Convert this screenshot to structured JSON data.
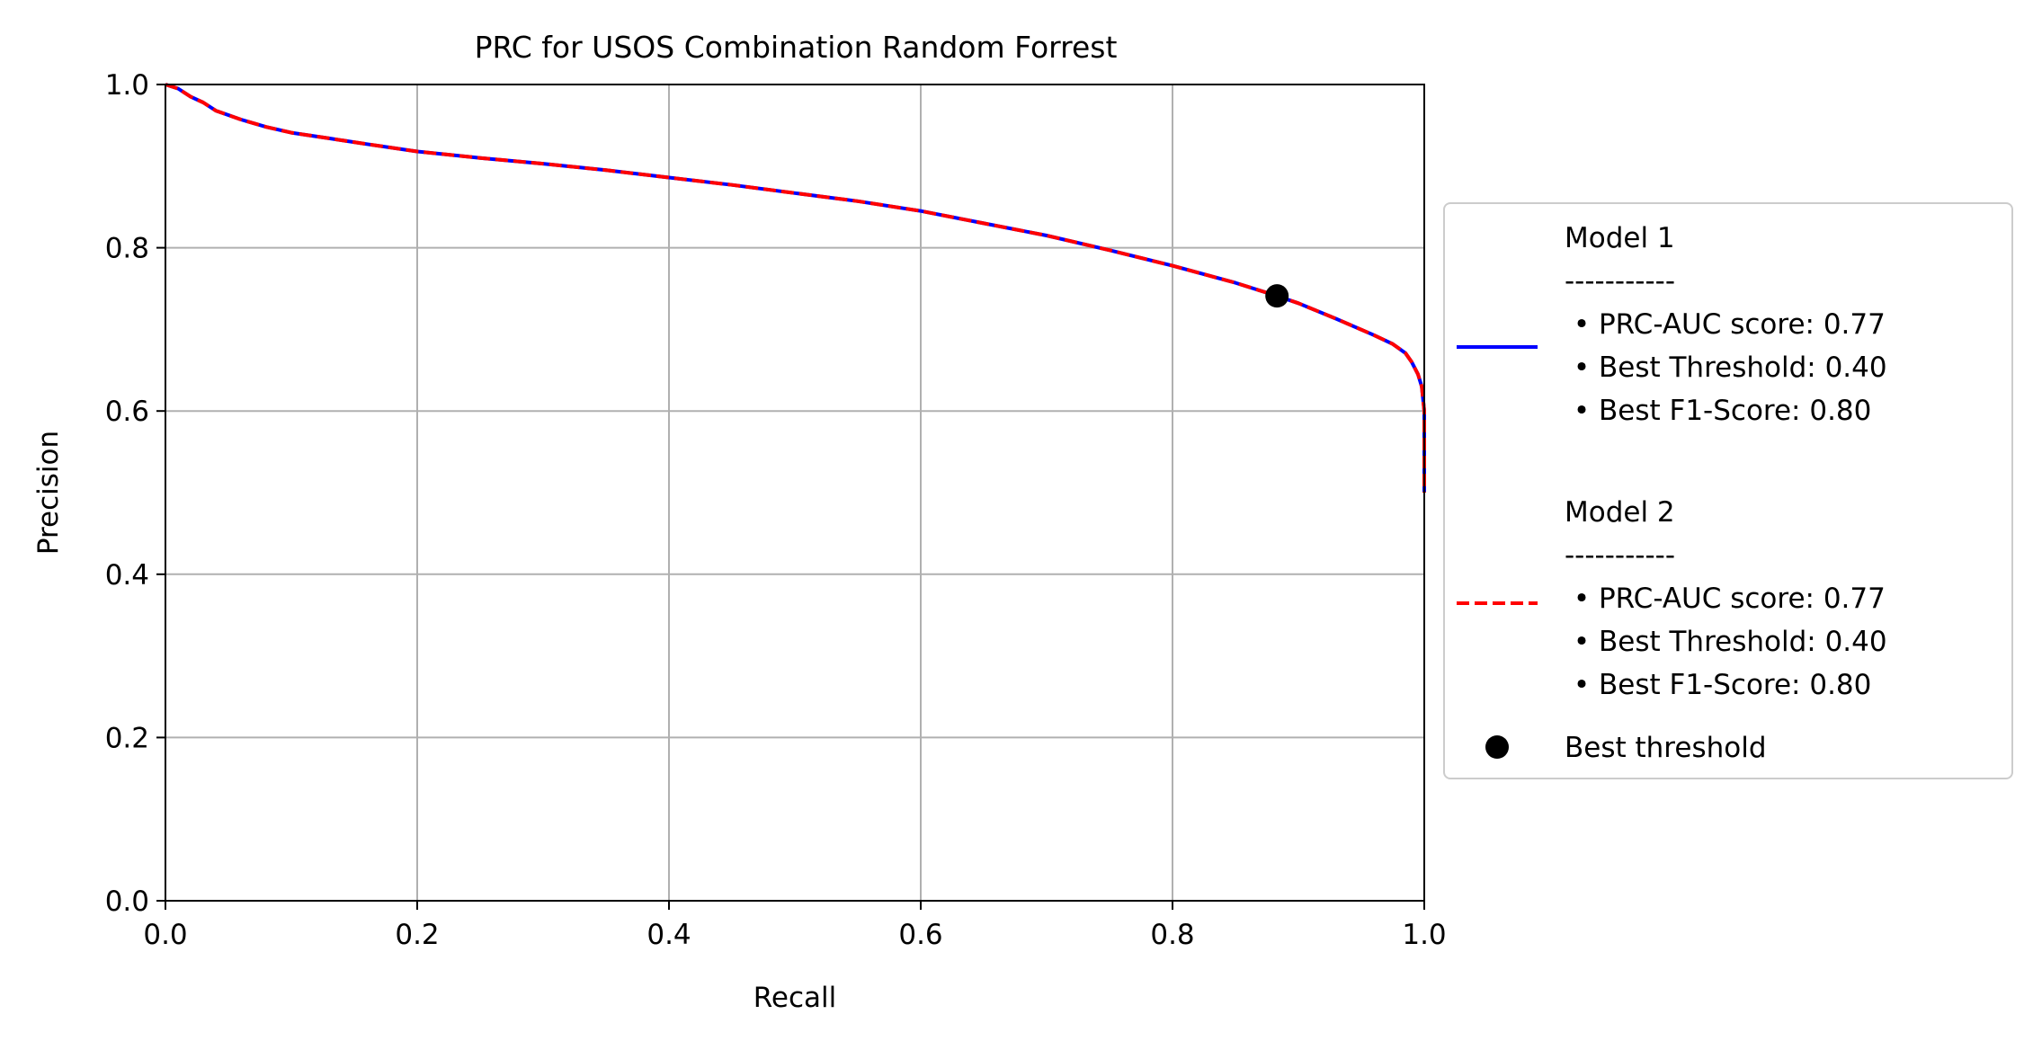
{
  "chart_data": {
    "type": "line",
    "title": "PRC for USOS Combination Random Forrest",
    "xlabel": "Recall",
    "ylabel": "Precision",
    "xlim": [
      0.0,
      1.0
    ],
    "ylim": [
      0.0,
      1.0
    ],
    "xticks": [
      "0.0",
      "0.2",
      "0.4",
      "0.6",
      "0.8",
      "1.0"
    ],
    "yticks": [
      "0.0",
      "0.2",
      "0.4",
      "0.6",
      "0.8",
      "1.0"
    ],
    "grid": true,
    "legend_position": "center-right, outside plot",
    "series": [
      {
        "name": "Model 1",
        "color": "#0000ff",
        "style": "solid",
        "details": [
          "-----------",
          " • PRC-AUC score: 0.77",
          " • Best Threshold: 0.40",
          " • Best F1-Score: 0.80"
        ],
        "x": [
          0.0,
          0.01,
          0.02,
          0.03,
          0.04,
          0.06,
          0.08,
          0.1,
          0.13,
          0.16,
          0.2,
          0.25,
          0.3,
          0.35,
          0.4,
          0.45,
          0.5,
          0.55,
          0.6,
          0.65,
          0.7,
          0.75,
          0.8,
          0.85,
          0.883,
          0.9,
          0.93,
          0.96,
          0.975,
          0.985,
          0.99,
          0.995,
          0.998,
          1.0,
          1.0
        ],
        "y": [
          1.0,
          0.995,
          0.985,
          0.978,
          0.968,
          0.957,
          0.948,
          0.941,
          0.934,
          0.927,
          0.918,
          0.91,
          0.903,
          0.895,
          0.886,
          0.877,
          0.867,
          0.857,
          0.845,
          0.83,
          0.815,
          0.797,
          0.778,
          0.757,
          0.741,
          0.732,
          0.713,
          0.693,
          0.682,
          0.671,
          0.66,
          0.645,
          0.63,
          0.6,
          0.5
        ]
      },
      {
        "name": "Model 2",
        "color": "#ff0000",
        "style": "dashed",
        "details": [
          "-----------",
          " • PRC-AUC score: 0.77",
          " • Best Threshold: 0.40",
          " • Best F1-Score: 0.80"
        ],
        "x": [
          0.0,
          0.01,
          0.02,
          0.03,
          0.04,
          0.06,
          0.08,
          0.1,
          0.13,
          0.16,
          0.2,
          0.25,
          0.3,
          0.35,
          0.4,
          0.45,
          0.5,
          0.55,
          0.6,
          0.65,
          0.7,
          0.75,
          0.8,
          0.85,
          0.883,
          0.9,
          0.93,
          0.96,
          0.975,
          0.985,
          0.99,
          0.995,
          0.998,
          1.0,
          1.0
        ],
        "y": [
          1.0,
          0.995,
          0.985,
          0.978,
          0.968,
          0.957,
          0.948,
          0.941,
          0.934,
          0.927,
          0.918,
          0.91,
          0.903,
          0.895,
          0.886,
          0.877,
          0.867,
          0.857,
          0.845,
          0.83,
          0.815,
          0.797,
          0.778,
          0.757,
          0.741,
          0.732,
          0.713,
          0.693,
          0.682,
          0.671,
          0.66,
          0.645,
          0.63,
          0.6,
          0.5
        ]
      }
    ],
    "markers": [
      {
        "name": "Best threshold",
        "x": 0.883,
        "y": 0.741,
        "color": "#000000"
      }
    ]
  }
}
